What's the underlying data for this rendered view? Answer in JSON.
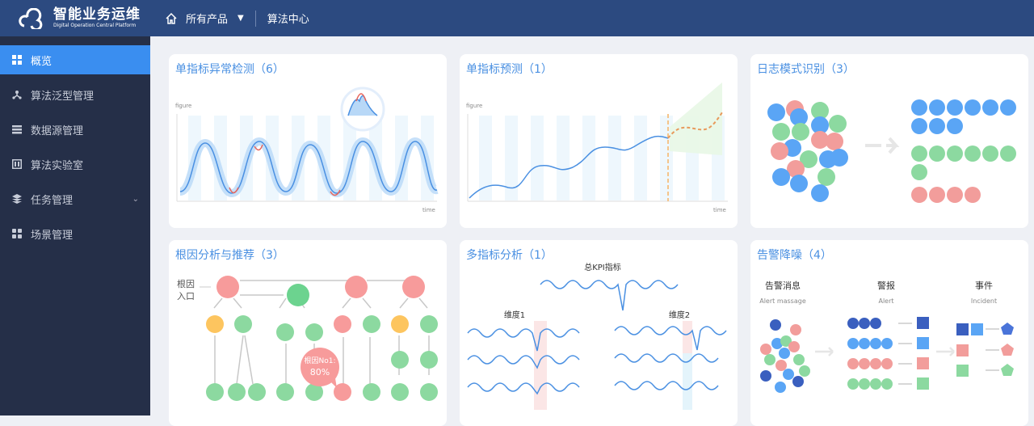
{
  "header": {
    "app_title": "智能业务运维",
    "app_subtitle": "Digital Operation Central Platform",
    "products_label": "所有产品",
    "algo_center": "算法中心"
  },
  "sidebar": {
    "items": [
      {
        "label": "概览",
        "icon": "grid-icon",
        "active": true
      },
      {
        "label": "算法泛型管理",
        "icon": "hierarchy-icon"
      },
      {
        "label": "数据源管理",
        "icon": "list-icon"
      },
      {
        "label": "算法实验室",
        "icon": "lab-icon"
      },
      {
        "label": "任务管理",
        "icon": "layers-icon",
        "expandable": true
      },
      {
        "label": "场景管理",
        "icon": "apps-icon"
      }
    ]
  },
  "cards": [
    {
      "title": "单指标异常检测（6）",
      "ylabel": "figure",
      "xlabel": "time"
    },
    {
      "title": "单指标预测（1）",
      "ylabel": "figure",
      "xlabel": "time"
    },
    {
      "title": "日志模式识别（3）"
    },
    {
      "title": "根因分析与推荐（3）",
      "entry": "根因",
      "entry2": "入口",
      "bubble": "根因No1:",
      "bubble_value": "80%"
    },
    {
      "title": "多指标分析（1）",
      "kpi": "总KPI指标",
      "dim1": "维度1",
      "dim2": "维度2"
    },
    {
      "title": "告警降噪（4）",
      "col1": "告警消息",
      "col1_en": "Alert massage",
      "col2": "警报",
      "col2_en": "Alert",
      "col3": "事件",
      "col3_en": "Incident"
    }
  ],
  "colors": {
    "header": "#2c4a80",
    "sidebar": "#252f48",
    "active": "#3a8ef0",
    "title": "#4a90e2",
    "blue": "#5aa5f5",
    "green": "#8cd9a0",
    "red": "#f29d9b",
    "navy": "#3a5fbf",
    "orange": "#fdc55f"
  }
}
